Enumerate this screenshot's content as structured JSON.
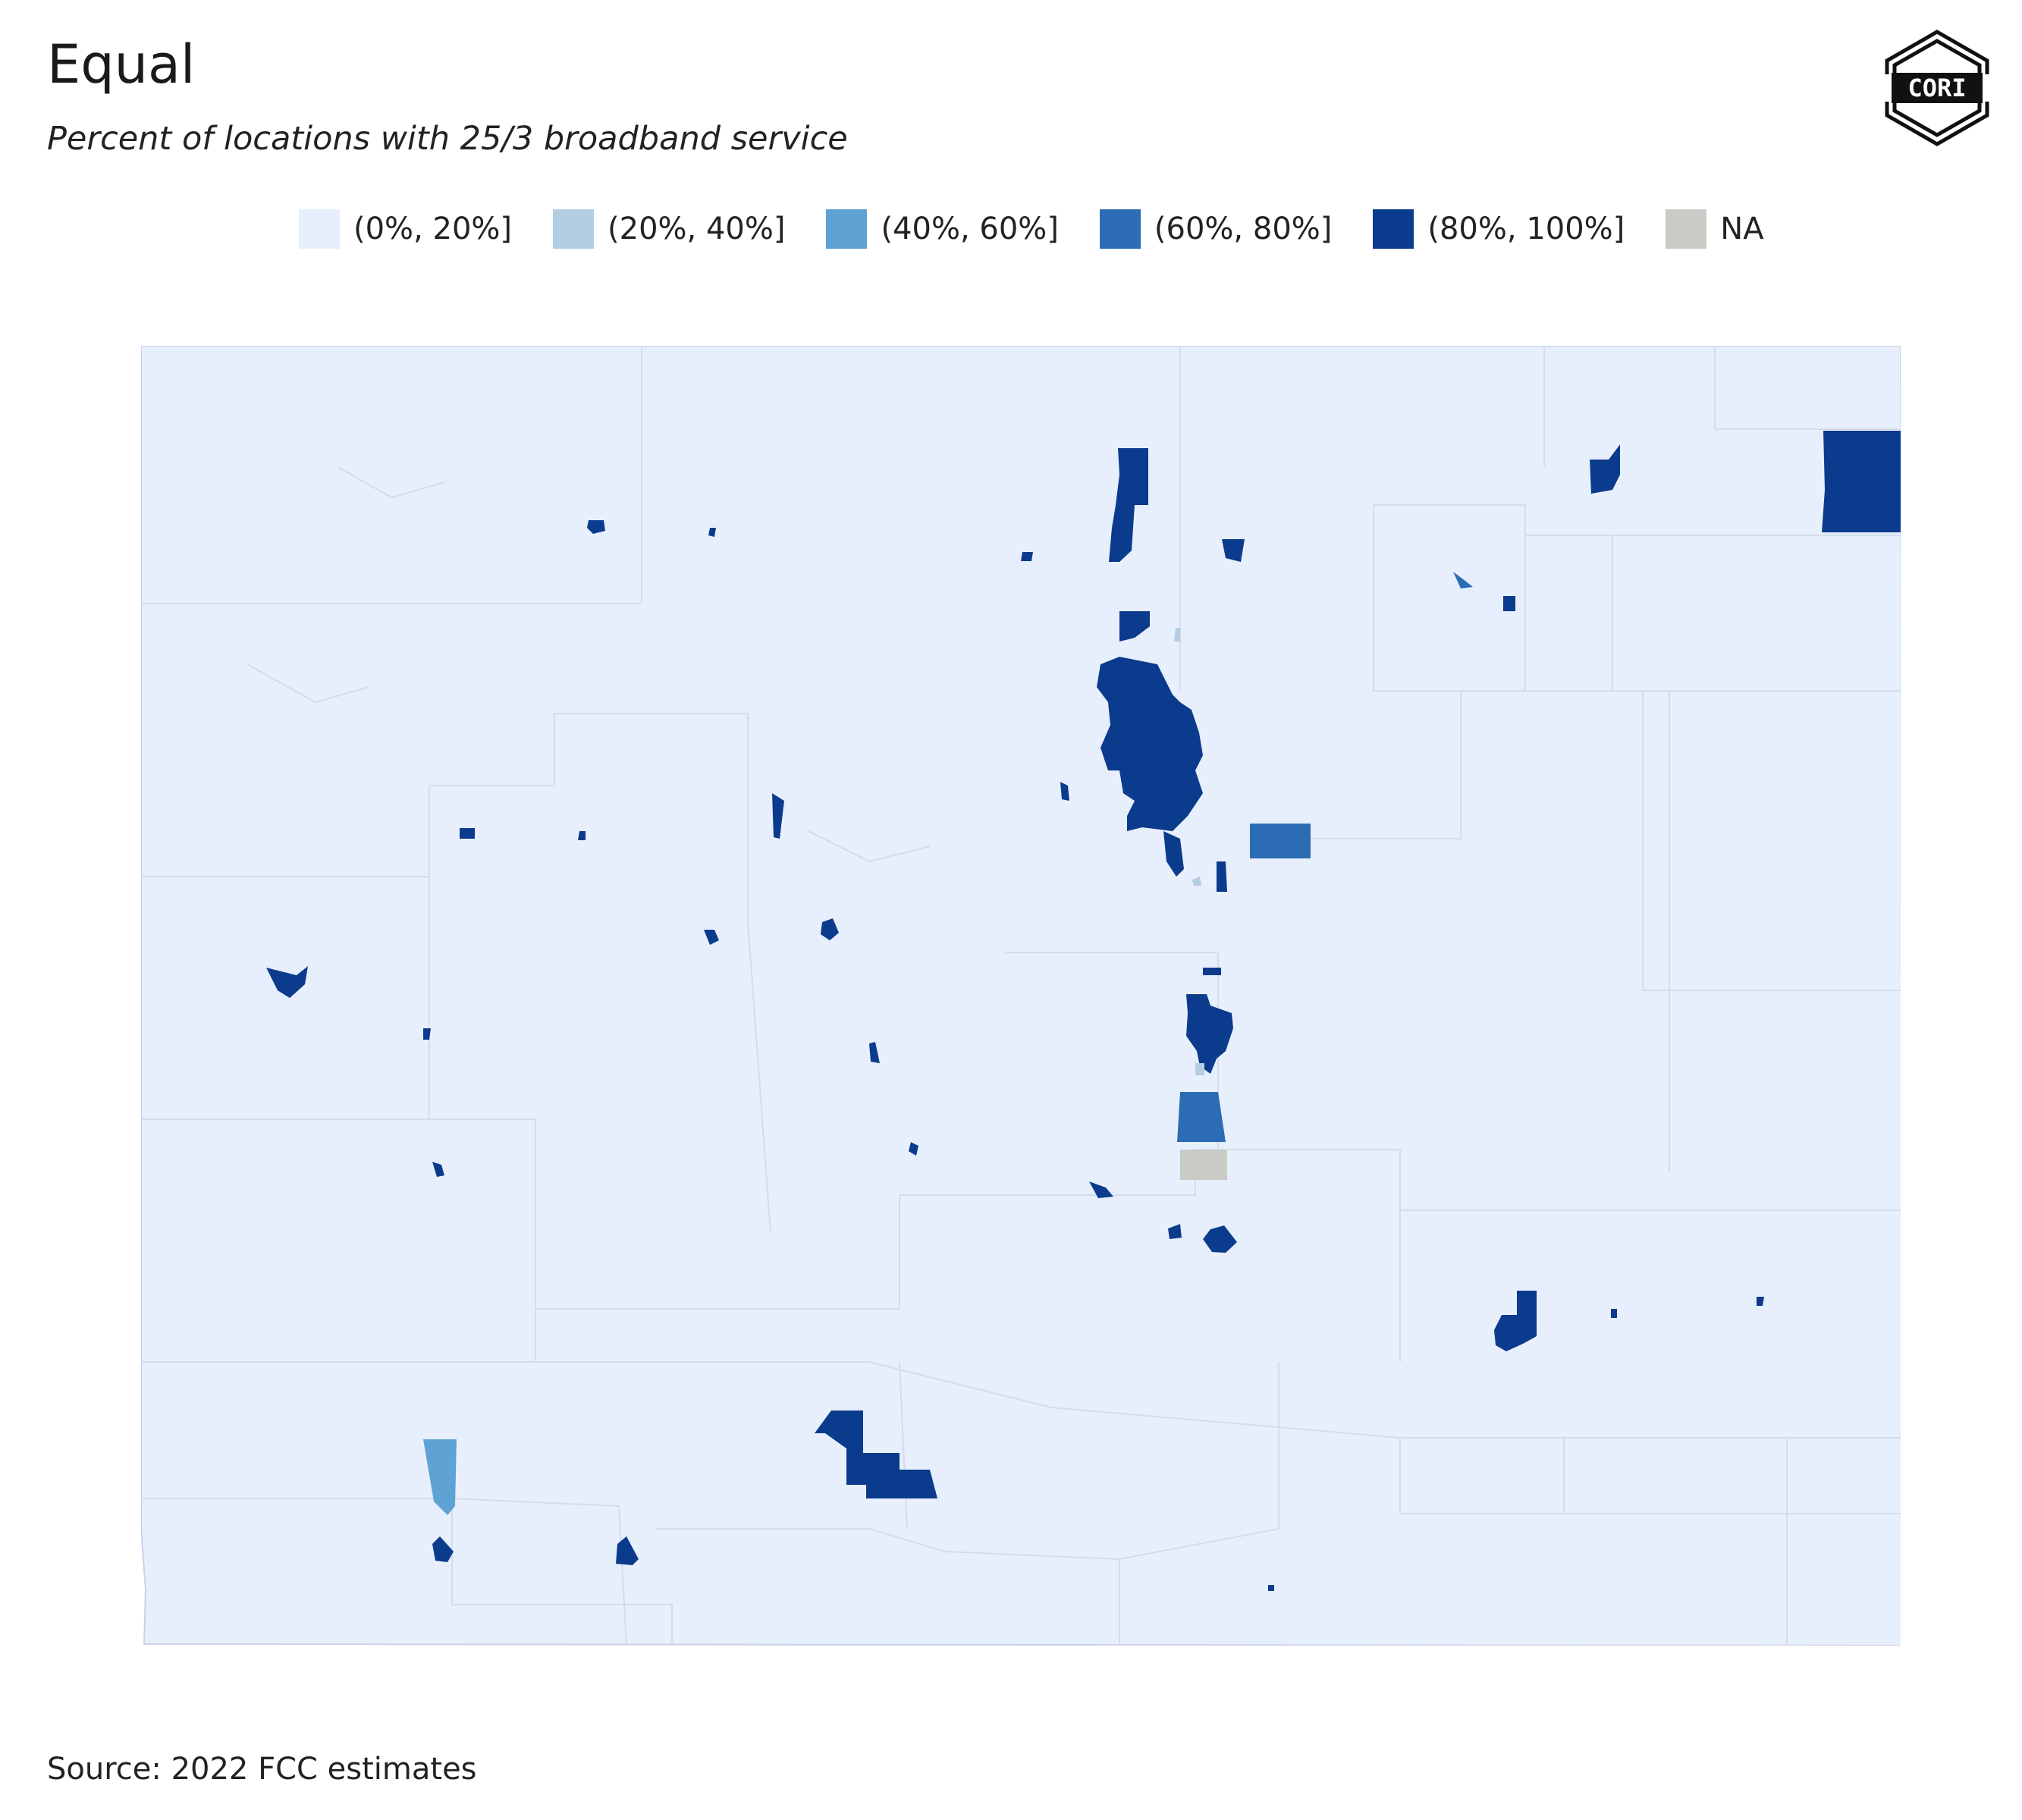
{
  "header": {
    "title": "Equal",
    "subtitle": "Percent of locations with 25/3 broadband service"
  },
  "logo": {
    "text": "CORI",
    "icon": "cori-logo-icon"
  },
  "legend": {
    "items": [
      {
        "label": "(0%, 20%]",
        "color": "#e8effc"
      },
      {
        "label": "(20%, 40%]",
        "color": "#b3cde3"
      },
      {
        "label": "(40%, 60%]",
        "color": "#5fa2d4"
      },
      {
        "label": "(60%, 80%]",
        "color": "#2b6cb4"
      },
      {
        "label": "(80%, 100%]",
        "color": "#0b3b8c"
      },
      {
        "label": "NA",
        "color": "#c9cbc6"
      }
    ]
  },
  "map": {
    "base_color": "#e8effc",
    "boundary_color": "#d4dcec",
    "outline_color": "#c8d2e6"
  },
  "footer": {
    "source": "Source: 2022 FCC estimates"
  }
}
